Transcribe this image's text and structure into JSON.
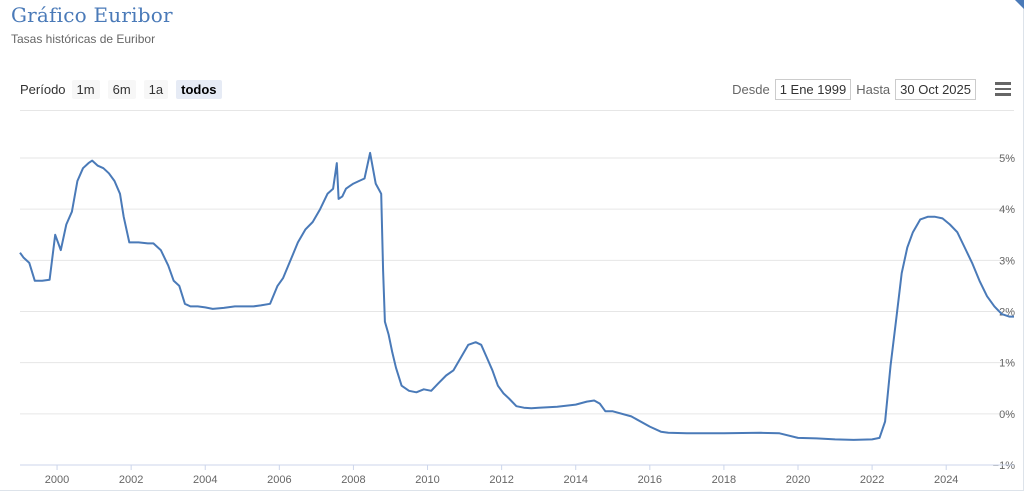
{
  "title": "Gráfico Euribor",
  "subtitle": "Tasas históricas de Euribor",
  "range_selector": {
    "label": "Período",
    "buttons": [
      {
        "label": "1m",
        "active": false
      },
      {
        "label": "6m",
        "active": false
      },
      {
        "label": "1a",
        "active": false
      },
      {
        "label": "todos",
        "active": true
      }
    ]
  },
  "date_range": {
    "from_label": "Desde",
    "from_value": "1 Ene 1999",
    "to_label": "Hasta",
    "to_value": "30 Oct 2025"
  },
  "menu_icon": "hamburger-menu-icon",
  "colors": {
    "accent": "#4a7ab8",
    "grid": "#e6e6e6",
    "text": "#666666"
  },
  "chart_data": {
    "type": "line",
    "title": "Gráfico Euribor",
    "subtitle": "Tasas históricas de Euribor",
    "xlabel": "",
    "ylabel": "",
    "x_ticks": [
      "2000",
      "2002",
      "2004",
      "2006",
      "2008",
      "2010",
      "2012",
      "2014",
      "2016",
      "2018",
      "2020",
      "2022",
      "2024"
    ],
    "y_ticks": [
      "5%",
      "4%",
      "3%",
      "2%",
      "1%",
      "0%",
      "−1%"
    ],
    "xlim": [
      1999.0,
      2025.83
    ],
    "ylim": [
      -1,
      5
    ],
    "grid": true,
    "legend": false,
    "series": [
      {
        "x": [
          1999.0,
          1999.1,
          1999.25,
          1999.4,
          1999.6,
          1999.8,
          1999.95,
          2000.1,
          2000.25,
          2000.4,
          2000.55,
          2000.7,
          2000.85,
          2000.95,
          2001.1,
          2001.25,
          2001.4,
          2001.55,
          2001.7,
          2001.8,
          2001.95,
          2002.2,
          2002.45,
          2002.6,
          2002.8,
          2003.0,
          2003.15,
          2003.3,
          2003.45,
          2003.6,
          2003.8,
          2004.0,
          2004.2,
          2004.5,
          2004.8,
          2005.0,
          2005.3,
          2005.5,
          2005.75,
          2005.95,
          2006.1,
          2006.3,
          2006.5,
          2006.7,
          2006.9,
          2007.1,
          2007.3,
          2007.45,
          2007.55,
          2007.6,
          2007.7,
          2007.8,
          2007.9,
          2008.0,
          2008.15,
          2008.3,
          2008.45,
          2008.6,
          2008.75,
          2008.8,
          2008.85,
          2008.95,
          2009.05,
          2009.15,
          2009.3,
          2009.5,
          2009.7,
          2009.9,
          2010.1,
          2010.3,
          2010.5,
          2010.7,
          2010.9,
          2011.1,
          2011.3,
          2011.45,
          2011.6,
          2011.75,
          2011.9,
          2012.05,
          2012.2,
          2012.4,
          2012.6,
          2012.8,
          2013.0,
          2013.5,
          2014.0,
          2014.3,
          2014.5,
          2014.65,
          2014.8,
          2015.0,
          2015.5,
          2016.0,
          2016.3,
          2016.5,
          2017.0,
          2018.0,
          2019.0,
          2019.5,
          2020.0,
          2020.5,
          2021.0,
          2021.5,
          2022.0,
          2022.2,
          2022.35,
          2022.5,
          2022.65,
          2022.8,
          2022.95,
          2023.1,
          2023.3,
          2023.5,
          2023.7,
          2023.9,
          2024.1,
          2024.3,
          2024.5,
          2024.7,
          2024.9,
          2025.1,
          2025.3,
          2025.5,
          2025.7,
          2025.83
        ],
        "y": [
          3.15,
          3.05,
          2.95,
          2.6,
          2.6,
          2.62,
          3.5,
          3.2,
          3.7,
          3.95,
          4.55,
          4.8,
          4.9,
          4.95,
          4.85,
          4.8,
          4.7,
          4.55,
          4.3,
          3.85,
          3.35,
          3.35,
          3.33,
          3.33,
          3.2,
          2.9,
          2.6,
          2.5,
          2.15,
          2.1,
          2.1,
          2.08,
          2.05,
          2.07,
          2.1,
          2.1,
          2.1,
          2.12,
          2.15,
          2.5,
          2.65,
          3.0,
          3.35,
          3.6,
          3.75,
          4.0,
          4.3,
          4.4,
          4.9,
          4.2,
          4.25,
          4.4,
          4.45,
          4.5,
          4.55,
          4.6,
          5.1,
          4.5,
          4.3,
          2.8,
          1.8,
          1.55,
          1.2,
          0.9,
          0.55,
          0.45,
          0.42,
          0.48,
          0.45,
          0.6,
          0.75,
          0.85,
          1.1,
          1.35,
          1.4,
          1.35,
          1.1,
          0.85,
          0.55,
          0.4,
          0.3,
          0.15,
          0.12,
          0.11,
          0.12,
          0.14,
          0.18,
          0.24,
          0.26,
          0.2,
          0.05,
          0.05,
          -0.05,
          -0.25,
          -0.35,
          -0.37,
          -0.38,
          -0.38,
          -0.37,
          -0.38,
          -0.47,
          -0.48,
          -0.5,
          -0.51,
          -0.5,
          -0.47,
          -0.15,
          0.95,
          1.85,
          2.75,
          3.25,
          3.55,
          3.8,
          3.85,
          3.85,
          3.82,
          3.7,
          3.55,
          3.25,
          2.95,
          2.6,
          2.3,
          2.1,
          1.95,
          1.9,
          1.9
        ]
      }
    ]
  }
}
